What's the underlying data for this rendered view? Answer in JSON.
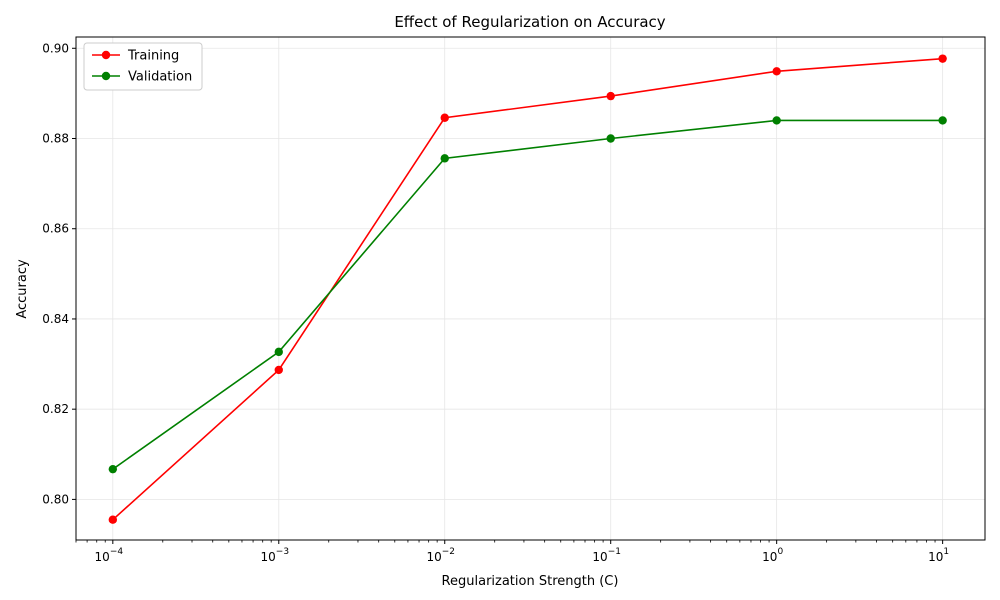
{
  "chart_data": {
    "type": "line",
    "title": "Effect of Regularization on Accuracy",
    "xlabel": "Regularization Strength (C)",
    "ylabel": "Accuracy",
    "x_scale": "log",
    "x": [
      0.0001,
      0.001,
      0.01,
      0.1,
      1,
      10
    ],
    "x_tick_values": [
      0.0001,
      0.001,
      0.01,
      0.1,
      1,
      10
    ],
    "x_tick_exponents": [
      "−4",
      "−3",
      "−2",
      "−1",
      "0",
      "1"
    ],
    "x_tick_base": "10",
    "xlim": [
      6e-05,
      18
    ],
    "ylim": [
      0.791,
      0.9025
    ],
    "y_ticks": [
      0.8,
      0.82,
      0.84,
      0.86,
      0.88,
      0.9
    ],
    "y_tick_labels": [
      "0.80",
      "0.82",
      "0.84",
      "0.86",
      "0.88",
      "0.90"
    ],
    "grid": true,
    "legend_position": "top-left",
    "series": [
      {
        "name": "Training",
        "color": "#ff0000",
        "marker": "circle",
        "values": [
          0.7955,
          0.8287,
          0.8846,
          0.8894,
          0.8949,
          0.8977
        ]
      },
      {
        "name": "Validation",
        "color": "#008000",
        "marker": "circle",
        "values": [
          0.8067,
          0.8327,
          0.8756,
          0.88,
          0.884,
          0.884
        ]
      }
    ]
  }
}
